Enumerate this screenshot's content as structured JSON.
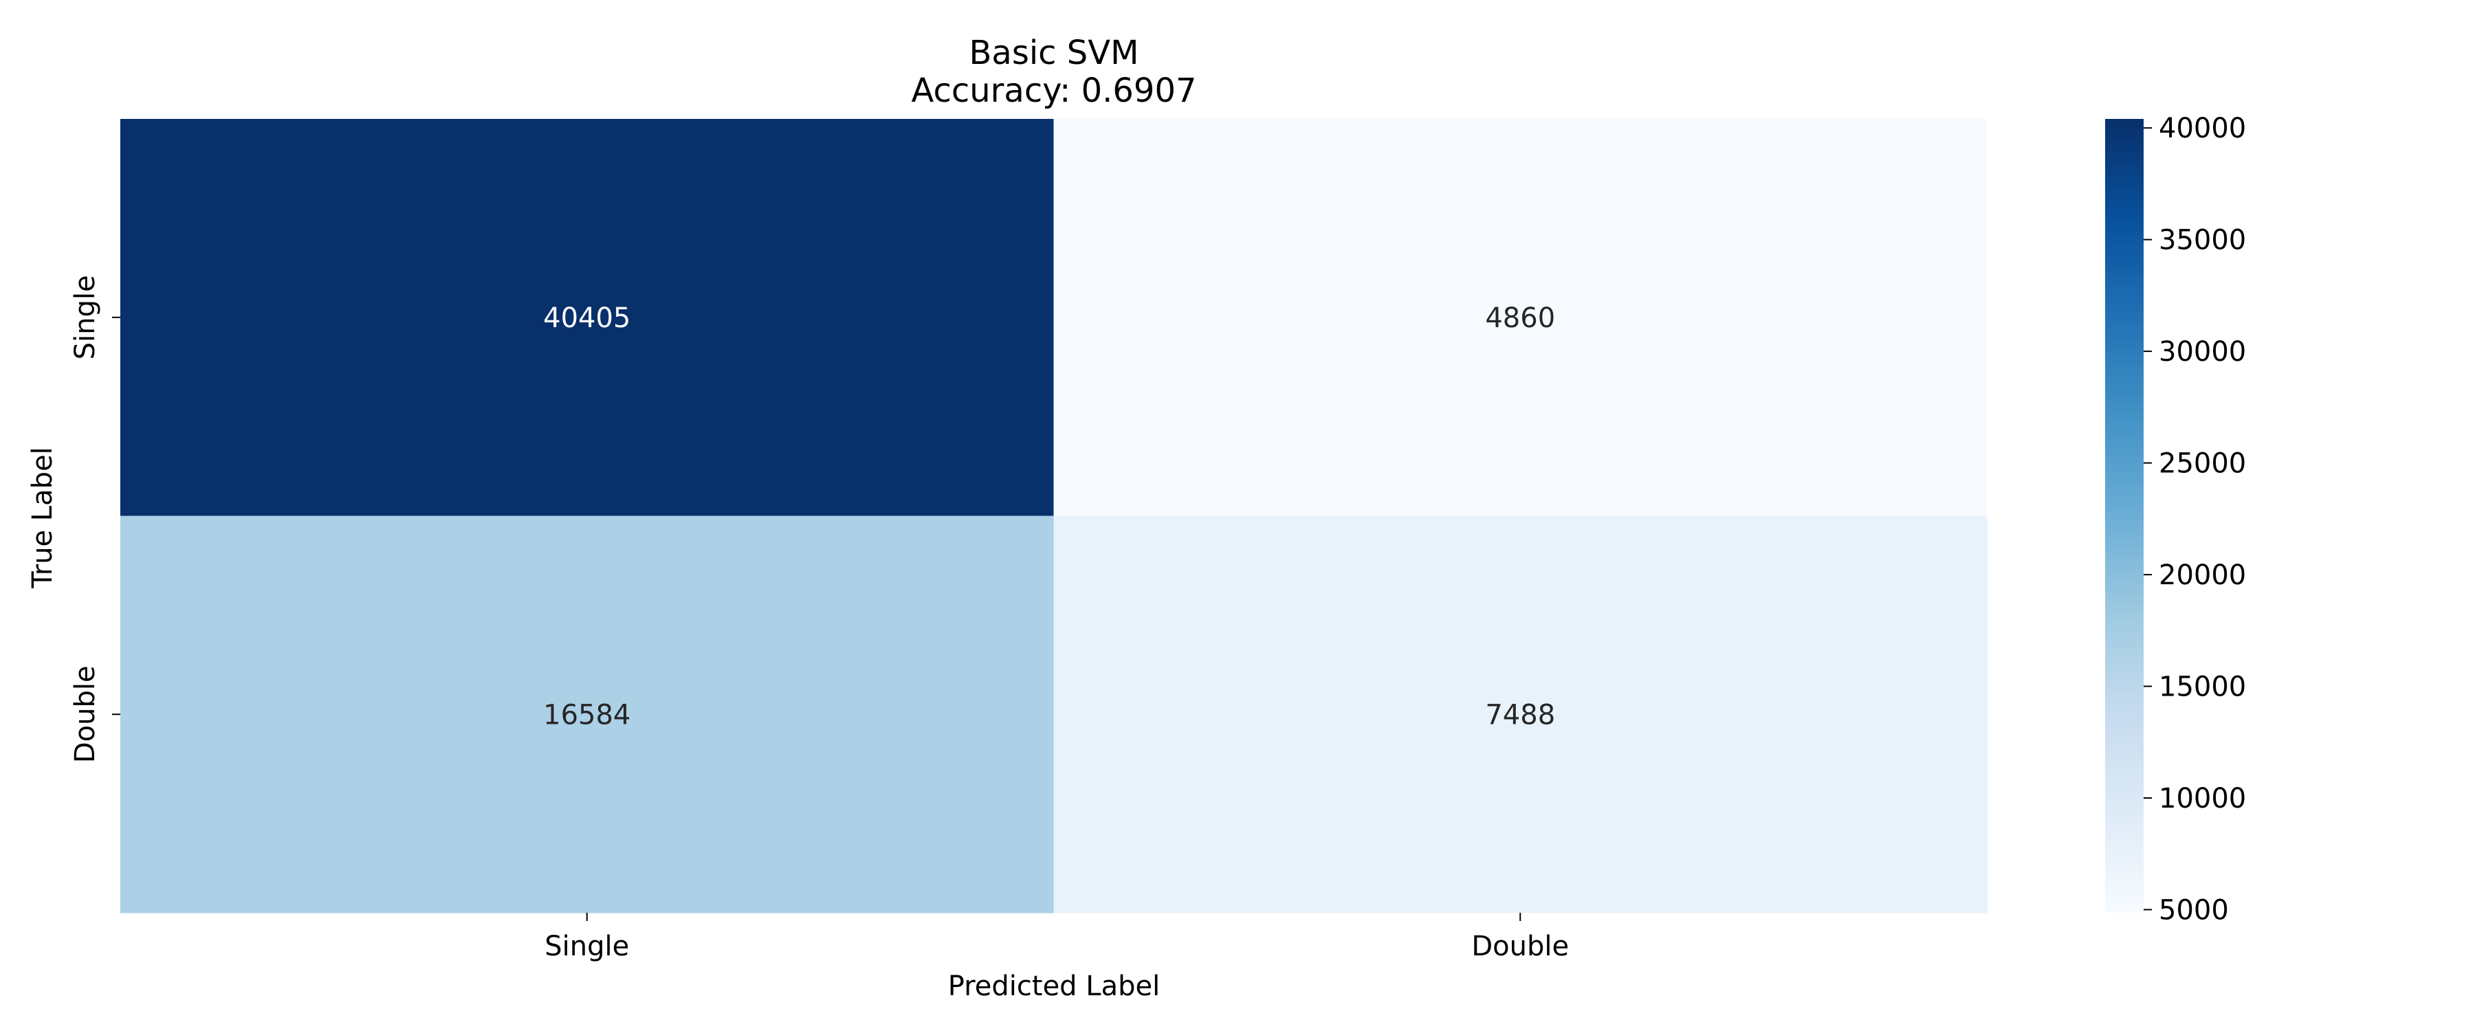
{
  "chart_data": {
    "type": "heatmap",
    "title": "Basic SVM",
    "subtitle": "Accuracy: 0.6907",
    "xlabel": "Predicted Label",
    "ylabel": "True Label",
    "x_categories": [
      "Single",
      "Double"
    ],
    "y_categories": [
      "Single",
      "Double"
    ],
    "values": [
      [
        40405,
        4860
      ],
      [
        16584,
        7488
      ]
    ],
    "colormap": "Blues",
    "colorbar": {
      "min": 4860,
      "max": 40405,
      "ticks": [
        5000,
        10000,
        15000,
        20000,
        25000,
        30000,
        35000,
        40000
      ]
    },
    "colors": {
      "low": "#f7fbff",
      "high": "#08306b"
    }
  }
}
